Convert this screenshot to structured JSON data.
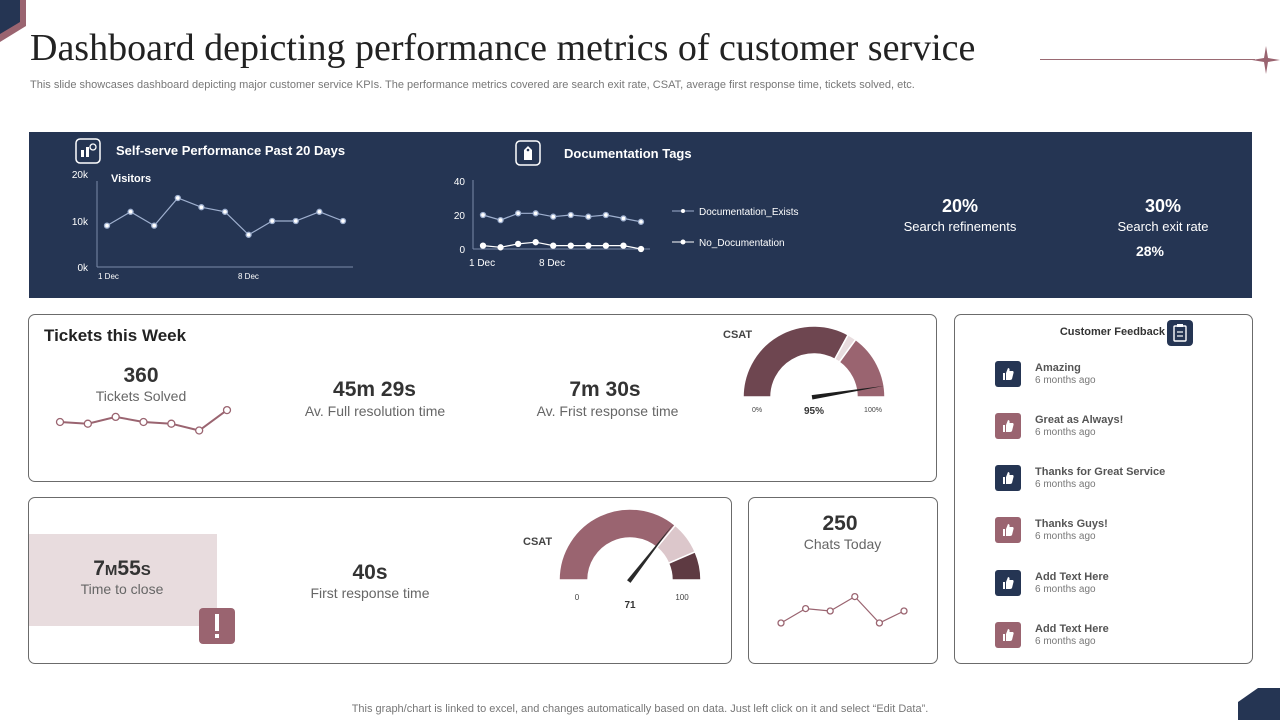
{
  "title": "Dashboard depicting performance metrics of customer service",
  "subtitle": "This slide showcases dashboard depicting major customer service KPIs. The performance metrics covered are search exit rate, CSAT,  average first response time, tickets solved, etc.",
  "footer": "This graph/chart is linked to excel,  and changes automatically based on data. Just left click on it and select “Edit Data”.",
  "colors": {
    "navy": "#253553",
    "maroon": "#9a6470",
    "dark_maroon": "#6e4650",
    "pink": "#e8dcde",
    "light_pink": "#d6bfc4"
  },
  "banner": {
    "self_serve": {
      "title": "Self-serve Performance Past 20 Days",
      "series_label": "Visitors"
    },
    "doc_tags": {
      "title": "Documentation Tags"
    },
    "kpis": [
      {
        "value": "20%",
        "label": "Search refinements"
      },
      {
        "value": "30%",
        "label": "Search exit rate",
        "extra": "28%"
      }
    ]
  },
  "tickets": {
    "title": "Tickets this Week",
    "solved_value": "360",
    "solved_label": "Tickets Solved",
    "resolution_value": "45m 29s",
    "resolution_label": "Av. Full resolution time",
    "first_response_value": "7m 30s",
    "first_response_label": "Av. Frist response time"
  },
  "time_to_close": {
    "value_main": "7m55s",
    "label": "Time to close"
  },
  "first_response": {
    "value": "40s",
    "label": "First response time"
  },
  "chats": {
    "value": "250",
    "label": "Chats Today"
  },
  "feedback": {
    "title": "Customer Feedback",
    "items": [
      {
        "title": "Amazing",
        "time": "6 months ago",
        "color": "#253553"
      },
      {
        "title": "Great as Always!",
        "time": "6 months ago",
        "color": "#9a6470"
      },
      {
        "title": "Thanks for Great Service",
        "time": "6 months ago",
        "color": "#253553"
      },
      {
        "title": "Thanks Guys!",
        "time": "6 months ago",
        "color": "#9a6470"
      },
      {
        "title": "Add Text Here",
        "time": "6 months ago",
        "color": "#253553"
      },
      {
        "title": "Add Text Here",
        "time": "6 months ago",
        "color": "#9a6470"
      }
    ]
  },
  "chart_data": [
    {
      "type": "line",
      "title": "Self-serve Performance Past 20 Days",
      "series": [
        {
          "name": "Visitors",
          "values": [
            9,
            12,
            9,
            15,
            13,
            12,
            7,
            10,
            10,
            12,
            10
          ]
        }
      ],
      "y_ticks": [
        "0k",
        "10k",
        "20k"
      ],
      "ylim": [
        0,
        20
      ],
      "x_ticks": [
        "1 Dec",
        "8 Dec"
      ]
    },
    {
      "type": "line",
      "title": "Documentation Tags",
      "series": [
        {
          "name": "Documentation_Exists",
          "values": [
            20,
            17,
            21,
            21,
            19,
            20,
            19,
            20,
            18,
            16
          ]
        },
        {
          "name": "No_Documentation",
          "values": [
            2,
            1,
            3,
            4,
            2,
            2,
            2,
            2,
            2,
            0
          ]
        }
      ],
      "y_ticks": [
        "0",
        "20",
        "40"
      ],
      "ylim": [
        0,
        40
      ],
      "x_ticks": [
        "1 Dec",
        "8 Dec"
      ]
    },
    {
      "type": "line",
      "title": "Tickets Solved",
      "series": [
        {
          "name": "Tickets",
          "values": [
            60,
            59,
            63,
            60,
            59,
            55,
            67
          ]
        }
      ],
      "ylim": [
        50,
        70
      ]
    },
    {
      "type": "gauge",
      "title": "CSAT",
      "value": 95,
      "min_label": "0%",
      "max_label": "100%",
      "value_label": "95%"
    },
    {
      "type": "gauge",
      "title": "CSAT",
      "value": 71,
      "min_label": "0",
      "max_label": "100",
      "value_label": "71"
    },
    {
      "type": "line",
      "title": "Chats Today",
      "series": [
        {
          "name": "Chats",
          "values": [
            5,
            11,
            10,
            16,
            5,
            10
          ]
        }
      ],
      "ylim": [
        0,
        20
      ]
    }
  ]
}
